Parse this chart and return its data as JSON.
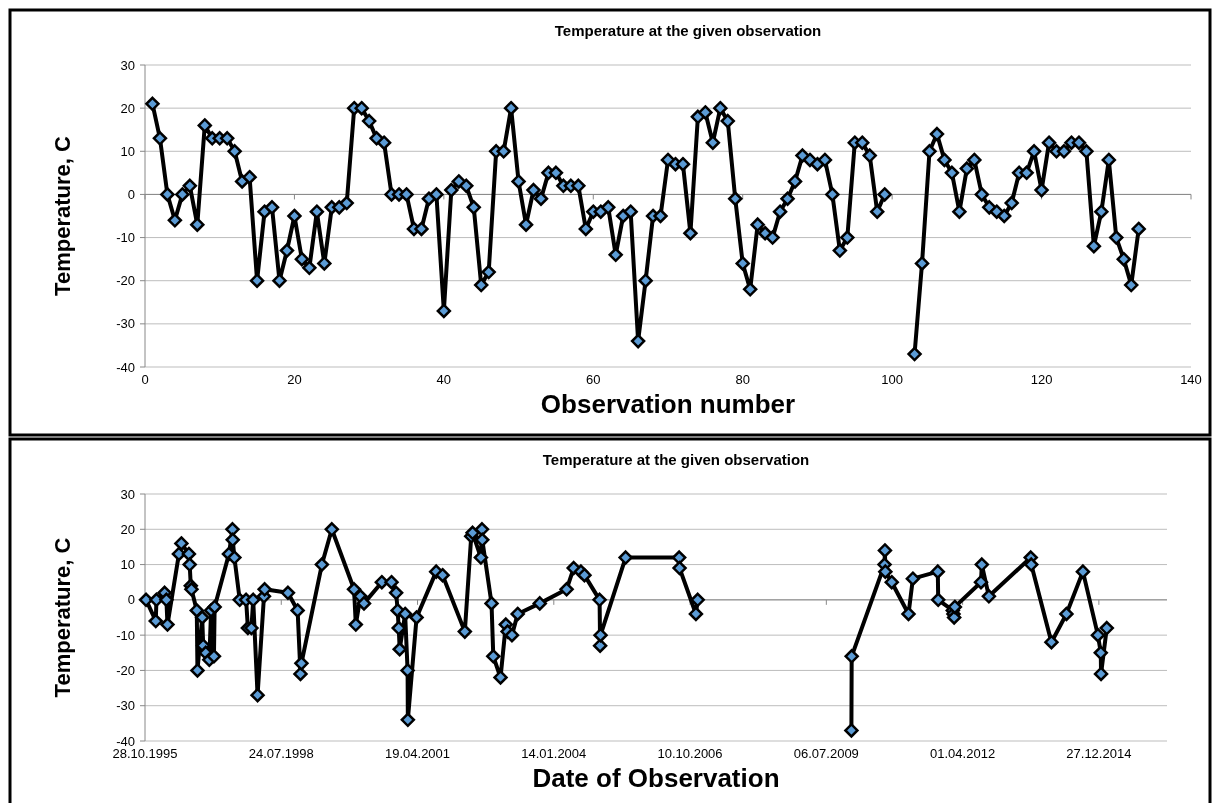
{
  "chart_data": [
    {
      "type": "line",
      "title": "Temperature at the given observation",
      "xlabel": "Observation number",
      "ylabel": "Temperature, C",
      "x": [
        1,
        2,
        3,
        4,
        5,
        6,
        7,
        8,
        9,
        10,
        11,
        12,
        13,
        14,
        15,
        16,
        17,
        18,
        19,
        20,
        21,
        22,
        23,
        24,
        25,
        26,
        27,
        28,
        29,
        30,
        31,
        32,
        33,
        34,
        35,
        36,
        37,
        38,
        39,
        40,
        41,
        42,
        43,
        44,
        45,
        46,
        47,
        48,
        49,
        50,
        51,
        52,
        53,
        54,
        55,
        56,
        57,
        58,
        59,
        60,
        61,
        62,
        63,
        64,
        65,
        66,
        67,
        68,
        69,
        70,
        71,
        72,
        73,
        74,
        75,
        76,
        77,
        78,
        79,
        80,
        81,
        82,
        83,
        84,
        85,
        86,
        87,
        88,
        89,
        90,
        91,
        92,
        93,
        94,
        95,
        96,
        97,
        98,
        99,
        100,
        101,
        102,
        103,
        104,
        105,
        106,
        107,
        108,
        109,
        110,
        111,
        112,
        113,
        114,
        115,
        116,
        117,
        118,
        119,
        120,
        121,
        122,
        123,
        124,
        125,
        126,
        127,
        128,
        129,
        130,
        131,
        132,
        133
      ],
      "series": [
        {
          "color": "#000000",
          "values": [
            21,
            13,
            0,
            -6,
            0,
            2,
            -7,
            16,
            13,
            13,
            13,
            10,
            3,
            4,
            -20,
            -4,
            -3,
            -20,
            -13,
            -5,
            -15,
            -17,
            -4,
            -16,
            -3,
            -3,
            -2,
            20,
            20,
            17,
            13,
            12,
            0,
            0,
            0,
            -8,
            -8,
            -1,
            0,
            -27,
            1,
            3,
            2,
            -3,
            -21,
            -18,
            10,
            10,
            20,
            3,
            -7,
            1,
            -1,
            5,
            5,
            2,
            2,
            2,
            -8,
            -4,
            -4,
            -3,
            -14,
            -5,
            -4,
            -34,
            -20,
            -5,
            -5,
            8,
            7,
            7,
            -9,
            18,
            19,
            12,
            20,
            17,
            -1,
            -16,
            -22,
            -7,
            -9,
            -10,
            -4,
            -1,
            3,
            9,
            8,
            7,
            8,
            0,
            -13,
            -10,
            12,
            12,
            9,
            -4,
            0,
            null,
            null,
            null,
            -37,
            -16,
            10,
            14,
            8,
            5,
            -4,
            6,
            8,
            0,
            -3,
            -4,
            -5,
            -2,
            5,
            5,
            10,
            1,
            12,
            10,
            10,
            12,
            12,
            10,
            -12,
            -4,
            8,
            -10,
            -15,
            -21,
            -8
          ]
        }
      ],
      "xlim": [
        0,
        140
      ],
      "xticks": [
        0,
        20,
        40,
        60,
        80,
        100,
        120,
        140
      ],
      "ylim": [
        -40,
        30
      ],
      "yticks": [
        -40,
        -30,
        -20,
        -10,
        0,
        10,
        20,
        30
      ],
      "grid": "y",
      "marker": "diamond",
      "line_style": "solid"
    },
    {
      "type": "line",
      "title": "Temperature at the given observation",
      "xlabel": "Date of Observation",
      "ylabel": "Temperature, C",
      "x": [
        "1995-11-05",
        "1996-01-15",
        "1996-01-20",
        "1996-03-20",
        "1996-04-02",
        "1996-04-10",
        "1996-07-03",
        "1996-07-21",
        "1996-09-14",
        "1996-09-20",
        "1996-09-28",
        "1996-10-03",
        "1996-11-11",
        "1996-11-16",
        "1996-12-21",
        "1996-12-28",
        "1997-01-16",
        "1997-02-11",
        "1997-02-24",
        "1997-03-17",
        "1997-03-22",
        "1997-07-05",
        "1997-07-31",
        "1997-08-02",
        "1997-08-14",
        "1997-09-22",
        "1997-11-08",
        "1997-11-21",
        "1997-12-17",
        "1997-12-30",
        "1998-01-31",
        "1998-03-19",
        "1998-03-24",
        "1998-09-11",
        "1998-11-21",
        "1998-12-12",
        "1998-12-19",
        "1999-05-18",
        "1999-07-30",
        "2000-01-09",
        "2000-01-22",
        "2000-02-25",
        "2000-03-22",
        "2000-07-31",
        "2000-10-10",
        "2000-11-13",
        "2000-11-24",
        "2000-12-02",
        "2000-12-09",
        "2001-01-18",
        "2001-02-05",
        "2001-02-07",
        "2001-04-12",
        "2001-09-03",
        "2001-10-20",
        "2002-04-01",
        "2002-05-18",
        "2002-05-28",
        "2002-07-28",
        "2002-08-05",
        "2002-08-07",
        "2002-10-14",
        "2002-10-27",
        "2002-12-19",
        "2003-01-27",
        "2003-02-09",
        "2003-03-13",
        "2003-04-24",
        "2003-10-03",
        "2004-04-17",
        "2004-06-08",
        "2004-07-31",
        "2004-08-26",
        "2004-12-15",
        "2004-12-19",
        "2004-12-22",
        "2005-06-24",
        "2006-07-22",
        "2006-07-25",
        "2006-11-22",
        "2006-12-05",
        "2008-06-01",
        "2010-01-06",
        "2010-01-08",
        "2010-09-06",
        "2010-09-09",
        "2010-09-12",
        "2010-10-29",
        "2011-03-01",
        "2011-04-02",
        "2011-10-02",
        "2011-10-05",
        "2012-01-20",
        "2012-01-25",
        "2012-01-30",
        "2012-02-04",
        "2012-08-14",
        "2012-08-20",
        "2012-10-11",
        "2013-08-14",
        "2013-08-18",
        "2014-01-13",
        "2014-05-03",
        "2014-09-01",
        "2014-12-20",
        "2015-01-10",
        "2015-01-12",
        "2015-02-23"
      ],
      "series": [
        {
          "color": "#000000",
          "values": [
            0,
            -6,
            0,
            2,
            0,
            -7,
            13,
            16,
            13,
            10,
            4,
            3,
            -3,
            -20,
            -5,
            -13,
            -15,
            -17,
            -3,
            -16,
            -2,
            13,
            20,
            17,
            12,
            0,
            0,
            -8,
            -8,
            0,
            -27,
            1,
            3,
            2,
            -3,
            -21,
            -18,
            10,
            20,
            3,
            -7,
            1,
            -1,
            5,
            5,
            2,
            -3,
            -8,
            -14,
            -4,
            -20,
            -34,
            -5,
            8,
            7,
            -9,
            18,
            19,
            12,
            20,
            17,
            -1,
            -16,
            -22,
            -7,
            -9,
            -10,
            -4,
            -1,
            3,
            9,
            8,
            7,
            0,
            -13,
            -10,
            12,
            12,
            9,
            -4,
            0,
            null,
            -37,
            -16,
            10,
            14,
            8,
            5,
            -4,
            6,
            8,
            0,
            -3,
            -4,
            -5,
            -2,
            5,
            10,
            1,
            12,
            10,
            -12,
            -4,
            8,
            -10,
            -15,
            -21,
            -8
          ]
        }
      ],
      "xlim": [
        "1995-10-28",
        "2016-05-10"
      ],
      "xticks": [
        {
          "value": "1995-10-28",
          "label": "28.10.1995"
        },
        {
          "value": "1998-07-24",
          "label": "24.07.1998"
        },
        {
          "value": "2001-04-19",
          "label": "19.04.2001"
        },
        {
          "value": "2004-01-14",
          "label": "14.01.2004"
        },
        {
          "value": "2006-10-10",
          "label": "10.10.2006"
        },
        {
          "value": "2009-07-06",
          "label": "06.07.2009"
        },
        {
          "value": "2012-04-01",
          "label": "01.04.2012"
        },
        {
          "value": "2014-12-27",
          "label": "27.12.2014"
        }
      ],
      "ylim": [
        -40,
        30
      ],
      "yticks": [
        -40,
        -30,
        -20,
        -10,
        0,
        10,
        20,
        30
      ],
      "grid": "y",
      "marker": "diamond",
      "line_style": "solid"
    }
  ]
}
